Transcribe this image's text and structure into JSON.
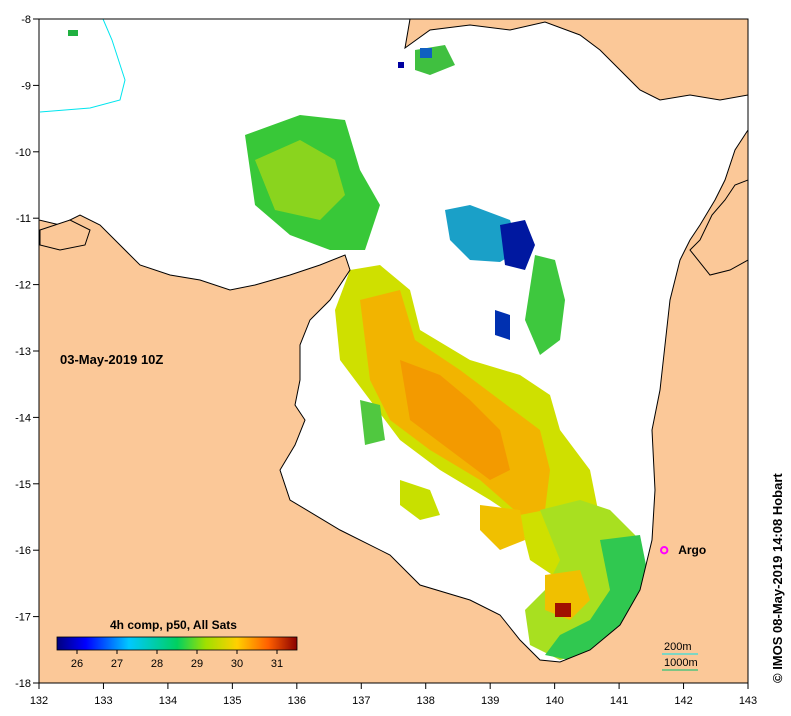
{
  "map": {
    "timestamp": "03-May-2019 10Z",
    "credit": "© IMOS 08-May-2019 14:08 Hobart",
    "x_ticks": [
      "132",
      "133",
      "134",
      "135",
      "136",
      "137",
      "138",
      "139",
      "140",
      "141",
      "142",
      "143"
    ],
    "y_ticks": [
      "-8",
      "-9",
      "-10",
      "-11",
      "-12",
      "-13",
      "-14",
      "-15",
      "-16",
      "-17",
      "-18"
    ],
    "lon_range": [
      132,
      143
    ],
    "lat_range": [
      -18,
      -8
    ]
  },
  "legend": {
    "title": "4h comp, p50, All Sats",
    "ticks": [
      "26",
      "27",
      "28",
      "29",
      "30",
      "31"
    ],
    "range": [
      25.5,
      31.5
    ]
  },
  "argo": {
    "label": "Argo",
    "lon": 141.7,
    "lat": -16.0
  },
  "contours": {
    "c200": "200m",
    "c1000": "1000m"
  },
  "colors": {
    "land": "#fbc898",
    "coast": "#000000",
    "contour200": "#00e5ee",
    "contour1000": "#00c070",
    "argo": "#ff00ff"
  }
}
